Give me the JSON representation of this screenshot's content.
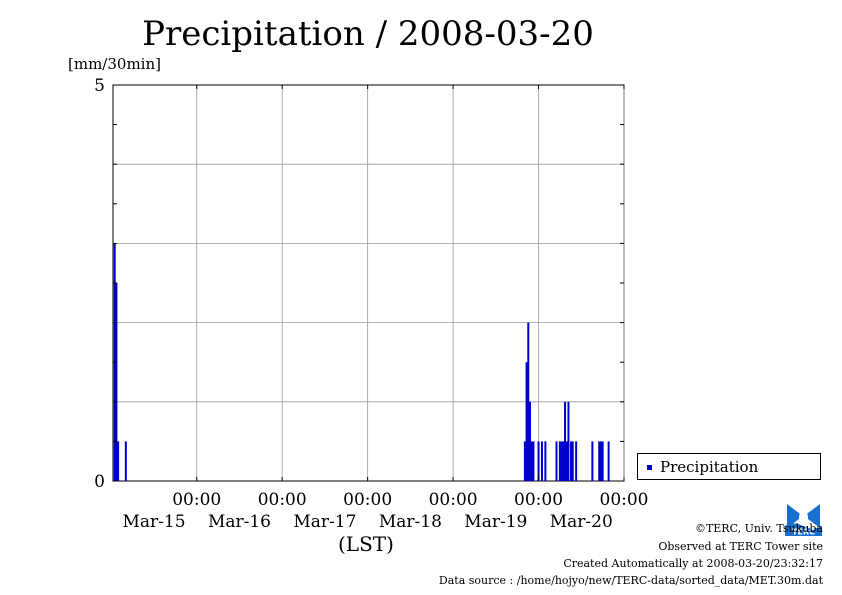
{
  "header": {
    "title": "Precipitation / 2008-03-20",
    "unit_label": "[mm/30min]"
  },
  "legend": {
    "label": "Precipitation"
  },
  "footer": {
    "copyright": "©TERC, Univ. Tsukuba",
    "site": "Observed at TERC Tower site",
    "created": "Created Automatically at 2008-03-20/23:32:17",
    "source": "Data source : /home/hojyo/new/TERC-data/sorted_data/MET.30m.dat",
    "logo_text": "TERC"
  },
  "chart_data": {
    "type": "bar",
    "title": "Precipitation / 2008-03-20",
    "ylabel": "[mm/30min]",
    "xlabel": "(LST)",
    "ylim": [
      0,
      5
    ],
    "xlim": [
      -0.98,
      5.0
    ],
    "y_tick_labels": [
      "0",
      "5"
    ],
    "y_gridlines": [
      1,
      2,
      3,
      4
    ],
    "x_ticks": [
      {
        "x": 0,
        "time": "00:00",
        "date": "Mar-15"
      },
      {
        "x": 1,
        "time": "00:00",
        "date": "Mar-16"
      },
      {
        "x": 2,
        "time": "00:00",
        "date": "Mar-17"
      },
      {
        "x": 3,
        "time": "00:00",
        "date": "Mar-18"
      },
      {
        "x": 4,
        "time": "00:00",
        "date": "Mar-19"
      },
      {
        "x": 5,
        "time": "00:00",
        "date": "Mar-20"
      }
    ],
    "bar_width_days": 0.0208,
    "grid": true,
    "legend_position": "right",
    "color": "#0000cc",
    "series": [
      {
        "name": "Precipitation",
        "points": [
          {
            "x": -0.96,
            "y": 3.0
          },
          {
            "x": -0.94,
            "y": 2.5
          },
          {
            "x": -0.92,
            "y": 0.5
          },
          {
            "x": -0.83,
            "y": 0.5
          },
          {
            "x": 3.84,
            "y": 0.5
          },
          {
            "x": 3.86,
            "y": 1.5
          },
          {
            "x": 3.88,
            "y": 2.0
          },
          {
            "x": 3.9,
            "y": 1.0
          },
          {
            "x": 3.92,
            "y": 0.5
          },
          {
            "x": 3.94,
            "y": 0.5
          },
          {
            "x": 4.0,
            "y": 0.5
          },
          {
            "x": 4.04,
            "y": 0.5
          },
          {
            "x": 4.08,
            "y": 0.5
          },
          {
            "x": 4.21,
            "y": 0.5
          },
          {
            "x": 4.25,
            "y": 0.5
          },
          {
            "x": 4.27,
            "y": 0.5
          },
          {
            "x": 4.29,
            "y": 0.5
          },
          {
            "x": 4.31,
            "y": 1.0
          },
          {
            "x": 4.33,
            "y": 0.5
          },
          {
            "x": 4.35,
            "y": 1.0
          },
          {
            "x": 4.38,
            "y": 0.5
          },
          {
            "x": 4.4,
            "y": 0.5
          },
          {
            "x": 4.44,
            "y": 0.5
          },
          {
            "x": 4.63,
            "y": 0.5
          },
          {
            "x": 4.71,
            "y": 0.5
          },
          {
            "x": 4.73,
            "y": 0.5
          },
          {
            "x": 4.75,
            "y": 0.5
          },
          {
            "x": 4.82,
            "y": 0.5
          }
        ]
      }
    ]
  }
}
